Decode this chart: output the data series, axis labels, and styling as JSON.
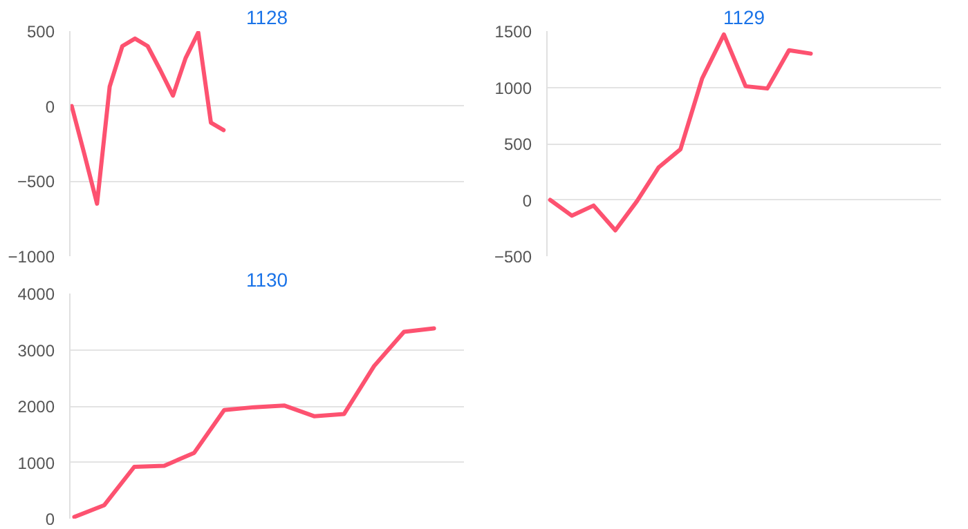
{
  "chart_data": [
    {
      "type": "line",
      "title": "1128",
      "categories": [
        null,
        null,
        null,
        null,
        null,
        null,
        null,
        null,
        null,
        null,
        null,
        null,
        null,
        null,
        null,
        null,
        null,
        null,
        null,
        null,
        null,
        null,
        null,
        null,
        null,
        null,
        null,
        null,
        null,
        null,
        null,
        null
      ],
      "series": [
        {
          "color": "#fd5270",
          "values": [
            0,
            -320,
            -650,
            130,
            400,
            450,
            400,
            240,
            70,
            320,
            490,
            -110,
            -160,
            null,
            null,
            null,
            null,
            null,
            null,
            null,
            null,
            null,
            null,
            null,
            null,
            null,
            null,
            null,
            null,
            null,
            null,
            null
          ]
        }
      ],
      "ylim": [
        -1000,
        500
      ],
      "yticks": [
        -1000,
        -500,
        0,
        500
      ],
      "grid": "y",
      "tick_labels": "y",
      "marker": "none",
      "line_style": "solid"
    },
    {
      "type": "line",
      "title": "1129",
      "categories": [
        null,
        null,
        null,
        null,
        null,
        null,
        null,
        null,
        null,
        null,
        null,
        null,
        null,
        null,
        null,
        null,
        null,
        null,
        null
      ],
      "series": [
        {
          "color": "#fd5270",
          "values": [
            0,
            -140,
            -50,
            -270,
            -10,
            290,
            450,
            1080,
            1470,
            1010,
            990,
            1330,
            1300,
            null,
            null,
            null,
            null,
            null,
            null
          ]
        }
      ],
      "ylim": [
        -500,
        1500
      ],
      "yticks": [
        -500,
        0,
        500,
        1000,
        1500
      ],
      "grid": "y",
      "tick_labels": "y",
      "marker": "none",
      "line_style": "solid"
    },
    {
      "type": "line",
      "title": "1130",
      "categories": [
        null,
        null,
        null,
        null,
        null,
        null,
        null,
        null,
        null,
        null,
        null,
        null,
        null,
        null
      ],
      "series": [
        {
          "color": "#fd5270",
          "values": [
            30,
            240,
            920,
            940,
            1170,
            1930,
            1980,
            2010,
            1820,
            1860,
            2710,
            3320,
            3380,
            null
          ]
        }
      ],
      "ylim": [
        0,
        4000
      ],
      "yticks": [
        0,
        1000,
        2000,
        3000,
        4000
      ],
      "grid": "y",
      "tick_labels": "y",
      "marker": "none",
      "line_style": "solid"
    }
  ]
}
